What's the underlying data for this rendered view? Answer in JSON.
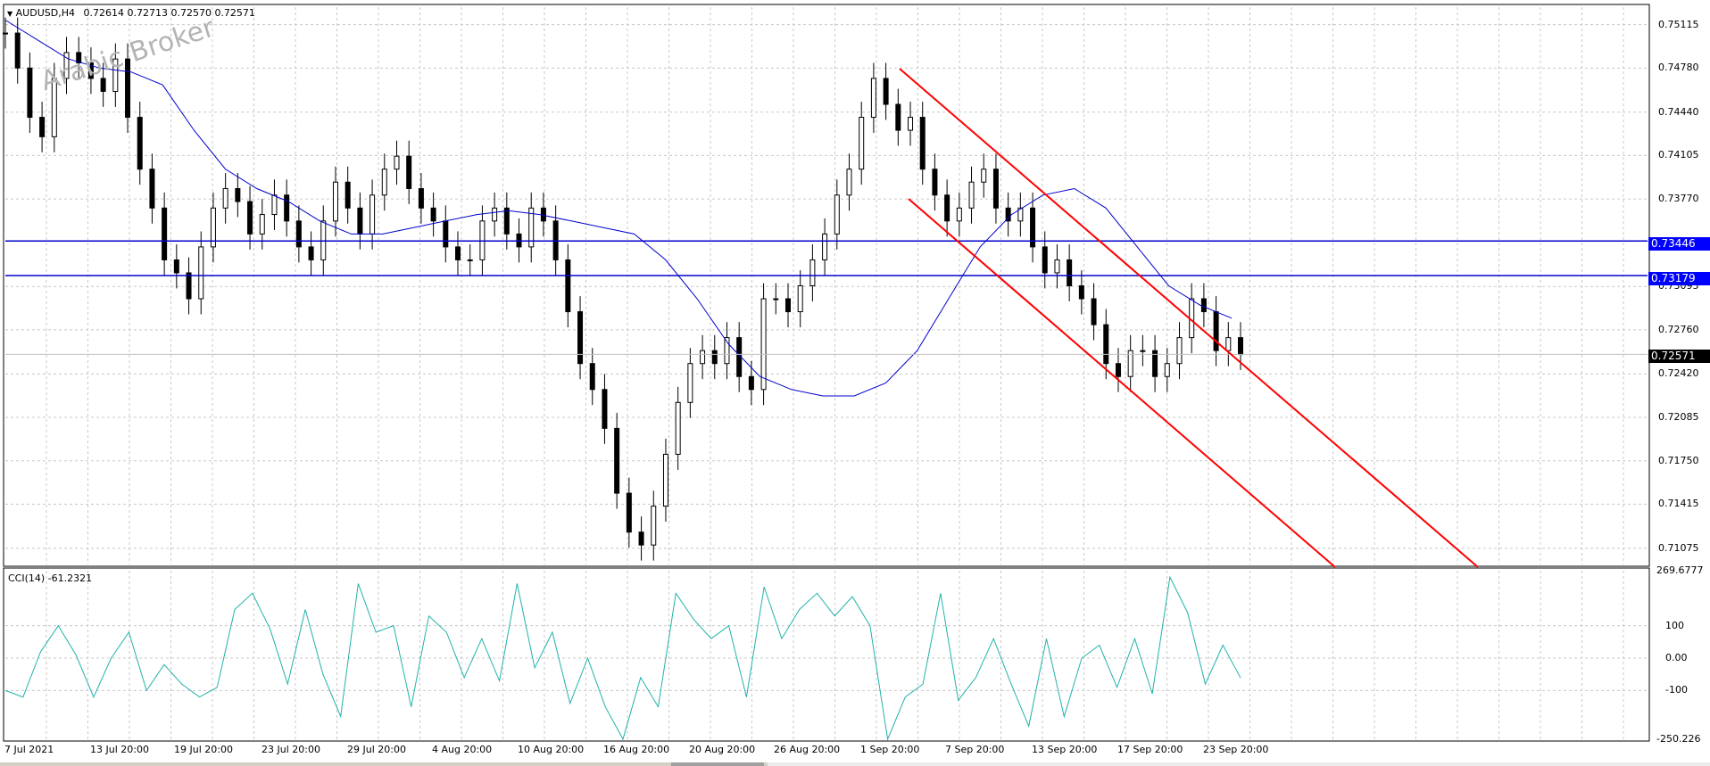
{
  "header": {
    "symbol": "AUDUSD,H4",
    "ohlc": "0.72614 0.72713 0.72570 0.72571"
  },
  "watermark": "Arabic Broker",
  "indicator": {
    "label": "CCI(14) -61.2321"
  },
  "price_axis": {
    "ticks": [
      "0.75115",
      "0.74780",
      "0.74440",
      "0.74105",
      "0.73770",
      "0.73095",
      "0.72760",
      "0.72420",
      "0.72085",
      "0.71750",
      "0.71415",
      "0.71075"
    ],
    "tag_high": "0.73446",
    "tag_low": "0.73179",
    "tag_current": "0.72571",
    "colors": {
      "level_line": "#0000ff",
      "current_tag": "#000000",
      "level_tag": "#0000ff"
    }
  },
  "cci_axis": {
    "ticks": [
      "269.6777",
      "100",
      "0.00",
      "-100",
      "-250.226"
    ]
  },
  "time_axis": {
    "labels": [
      "7 Jul 2021",
      "13 Jul 20:00",
      "19 Jul 20:00",
      "23 Jul 20:00",
      "29 Jul 20:00",
      "4 Aug 20:00",
      "10 Aug 20:00",
      "16 Aug 20:00",
      "20 Aug 20:00",
      "26 Aug 20:00",
      "1 Sep 20:00",
      "7 Sep 20:00",
      "13 Sep 20:00",
      "17 Sep 20:00",
      "23 Sep 20:00"
    ]
  },
  "colors": {
    "candle": "#000000",
    "moving_average": "#0000cd",
    "channel": "#ff0000",
    "cci_line": "#20b2aa",
    "grid": "#c8c8c8"
  },
  "chart_data": {
    "type": "line",
    "symbol": "AUDUSD",
    "timeframe": "H4",
    "close_series": [
      0.7505,
      0.7478,
      0.744,
      0.7425,
      0.747,
      0.749,
      0.7482,
      0.747,
      0.746,
      0.7485,
      0.744,
      0.74,
      0.737,
      0.733,
      0.732,
      0.73,
      0.734,
      0.737,
      0.7385,
      0.7375,
      0.735,
      0.7365,
      0.738,
      0.736,
      0.734,
      0.733,
      0.736,
      0.739,
      0.737,
      0.735,
      0.738,
      0.74,
      0.741,
      0.7385,
      0.737,
      0.736,
      0.734,
      0.733,
      0.733,
      0.736,
      0.737,
      0.735,
      0.734,
      0.737,
      0.736,
      0.733,
      0.729,
      0.725,
      0.723,
      0.72,
      0.715,
      0.712,
      0.711,
      0.714,
      0.718,
      0.722,
      0.725,
      0.726,
      0.725,
      0.727,
      0.724,
      0.723,
      0.73,
      0.73,
      0.729,
      0.731,
      0.733,
      0.735,
      0.738,
      0.74,
      0.744,
      0.747,
      0.745,
      0.743,
      0.744,
      0.74,
      0.738,
      0.736,
      0.737,
      0.739,
      0.74,
      0.737,
      0.736,
      0.737,
      0.734,
      0.732,
      0.733,
      0.731,
      0.73,
      0.728,
      0.725,
      0.724,
      0.726,
      0.726,
      0.724,
      0.725,
      0.727,
      0.73,
      0.729,
      0.726,
      0.727,
      0.7257
    ],
    "ma_series": [
      0.7515,
      0.75,
      0.7485,
      0.7478,
      0.7475,
      0.7465,
      0.743,
      0.74,
      0.7385,
      0.7375,
      0.736,
      0.735,
      0.735,
      0.7355,
      0.736,
      0.7365,
      0.7368,
      0.7365,
      0.736,
      0.7355,
      0.735,
      0.733,
      0.73,
      0.7265,
      0.724,
      0.723,
      0.7225,
      0.7225,
      0.7235,
      0.726,
      0.73,
      0.734,
      0.7365,
      0.738,
      0.7385,
      0.737,
      0.734,
      0.731,
      0.7295,
      0.7285
    ],
    "cci_series": [
      -100,
      -120,
      20,
      100,
      10,
      -120,
      0,
      80,
      -100,
      -20,
      -80,
      -120,
      -90,
      150,
      200,
      90,
      -80,
      150,
      -50,
      -180,
      230,
      80,
      100,
      -150,
      130,
      80,
      -60,
      60,
      -70,
      230,
      -30,
      80,
      -140,
      0,
      -150,
      -250,
      -60,
      -150,
      200,
      120,
      60,
      100,
      -120,
      220,
      60,
      150,
      200,
      130,
      190,
      100,
      -250,
      -120,
      -80,
      200,
      -130,
      -60,
      60,
      -80,
      -210,
      60,
      -180,
      0,
      40,
      -90,
      60,
      -110,
      250,
      140,
      -80,
      40,
      -61
    ],
    "price_range": [
      0.7095,
      0.7525
    ],
    "cci_range": [
      -250.226,
      269.6777
    ],
    "horizontal_levels": [
      0.73446,
      0.73179
    ],
    "current_price": 0.72571,
    "cci_levels": [
      100,
      0,
      -100
    ],
    "channel": {
      "upper": [
        [
          0.74795,
          0
        ],
        [
          0.725,
          0
        ]
      ],
      "note": ""
    },
    "grid": true
  }
}
